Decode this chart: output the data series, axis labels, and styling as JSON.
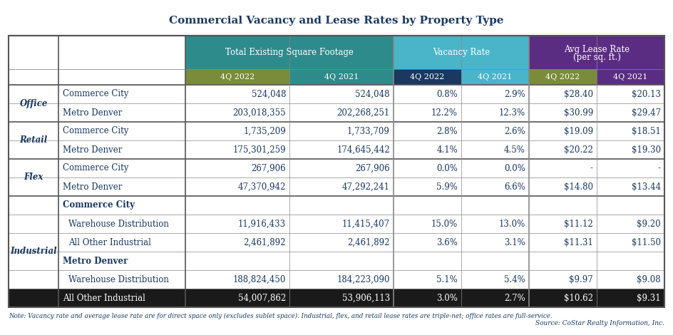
{
  "title": "Commercial Vacancy and Lease Rates by Property Type",
  "header_group1": "Total Existing Square Footage",
  "header_group2": "Vacancy Rate",
  "header_group3": "Avg Lease Rate\n(per sq. ft.)",
  "subheaders": [
    "4Q 2022",
    "4Q 2021",
    "4Q 2022",
    "4Q 2021",
    "4Q 2022",
    "4Q 2021"
  ],
  "note": "Note: Vacancy rate and average lease rate are for direct space only (excludes sublet space). Industrial, flex, and retail lease rates are triple-net; office rates are full-service.",
  "source": "Source: CoStar Realty Information, Inc.",
  "color_teal_dark": "#2d8b8b",
  "color_teal_light": "#4ab4c8",
  "color_navy_dark": "#1a3860",
  "color_navy_mid": "#1f5f8b",
  "color_purple": "#5b2d82",
  "color_olive1": "#7a8b3a",
  "color_olive2": "#8a9c3a",
  "color_subh_teal": "#2a7a7a",
  "color_subh_navy": "#1a3860",
  "color_subh_purple": "#5b2d82",
  "color_text": "#1a3860",
  "color_white": "#ffffff",
  "color_black": "#1a1a1a",
  "row_data": [
    [
      "Office",
      "Commerce City",
      "524,048",
      "524,048",
      "0.8%",
      "2.9%",
      "$28.40",
      "$20.13",
      false,
      false
    ],
    [
      "",
      "Metro Denver",
      "203,018,355",
      "202,268,251",
      "12.2%",
      "12.3%",
      "$30.99",
      "$29.47",
      false,
      false
    ],
    [
      "Retail",
      "Commerce City",
      "1,735,209",
      "1,733,709",
      "2.8%",
      "2.6%",
      "$19.09",
      "$18.51",
      false,
      false
    ],
    [
      "",
      "Metro Denver",
      "175,301,259",
      "174,645,442",
      "4.1%",
      "4.5%",
      "$20.22",
      "$19.30",
      false,
      false
    ],
    [
      "Flex",
      "Commerce City",
      "267,906",
      "267,906",
      "0.0%",
      "0.0%",
      "-",
      "-",
      false,
      false
    ],
    [
      "",
      "Metro Denver",
      "47,370,942",
      "47,292,241",
      "5.9%",
      "6.6%",
      "$14.80",
      "$13.44",
      false,
      false
    ],
    [
      "Industrial",
      "Commerce City",
      "",
      "",
      "",
      "",
      "",
      "",
      true,
      false
    ],
    [
      "",
      "Warehouse Distribution",
      "11,916,433",
      "11,415,407",
      "15.0%",
      "13.0%",
      "$11.12",
      "$9.20",
      false,
      false
    ],
    [
      "",
      "All Other Industrial",
      "2,461,892",
      "2,461,892",
      "3.6%",
      "3.1%",
      "$11.31",
      "$11.50",
      false,
      false
    ],
    [
      "",
      "Metro Denver",
      "",
      "",
      "",
      "",
      "",
      "",
      true,
      false
    ],
    [
      "",
      "Warehouse Distribution",
      "188,824,450",
      "184,223,090",
      "5.1%",
      "5.4%",
      "$9.97",
      "$9.08",
      false,
      false
    ],
    [
      "",
      "All Other Industrial",
      "54,007,862",
      "53,906,113",
      "3.0%",
      "2.7%",
      "$10.62",
      "$9.31",
      false,
      true
    ]
  ]
}
